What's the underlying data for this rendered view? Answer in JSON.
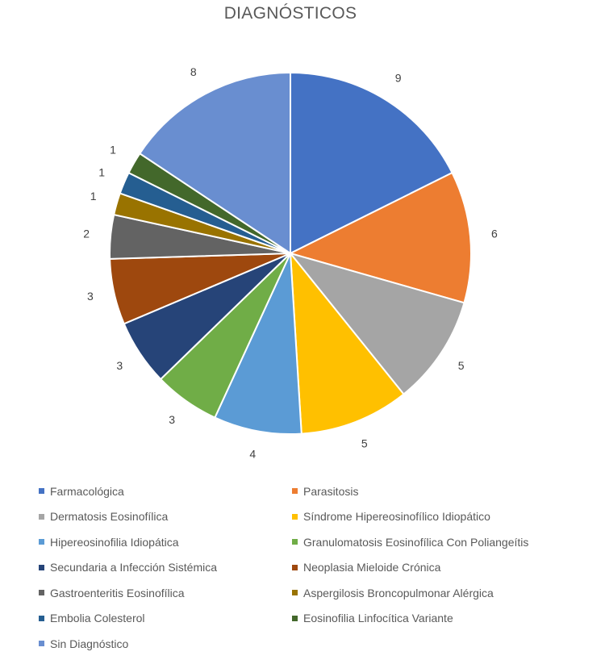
{
  "chart_data": {
    "type": "pie",
    "title": "DIAGNÓSTICOS",
    "legend_position": "bottom",
    "categories": [
      "Farmacológica",
      "Parasitosis",
      "Dermatosis Eosinofílica",
      "Síndrome Hipereosinofílico Idiopático",
      "Hipereosinofilia Idiopática",
      "Granulomatosis Eosinofílica Con Poliangeítis",
      "Secundaria a Infección Sistémica",
      "Neoplasia Mieloide Crónica",
      "Gastroenteritis Eosinofílica",
      "Aspergilosis Broncopulmonar Alérgica",
      "Embolia Colesterol",
      "Eosinofilia Linfocítica Variante",
      "Sin Diagnóstico"
    ],
    "values": [
      9,
      6,
      5,
      5,
      4,
      3,
      3,
      3,
      2,
      1,
      1,
      1,
      8
    ],
    "colors": [
      "#4472C4",
      "#ED7D31",
      "#A5A5A5",
      "#FFC000",
      "#5B9BD5",
      "#70AD47",
      "#264478",
      "#9E480E",
      "#636363",
      "#997300",
      "#255E91",
      "#43682B",
      "#698ED0"
    ]
  }
}
